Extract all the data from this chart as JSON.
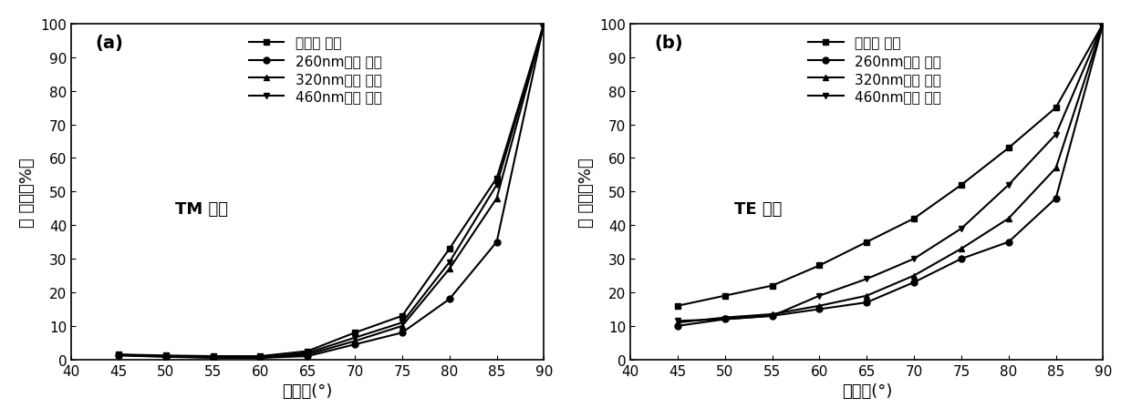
{
  "x": [
    45,
    50,
    55,
    60,
    65,
    70,
    75,
    80,
    85,
    90
  ],
  "panel_a": {
    "label": "(a)",
    "annotation": "TM 极化",
    "ylabel": "反 射率（%）",
    "xlabel": "入射角(°)",
    "series": {
      "uncoated": {
        "label": "未镀膜 玻璌",
        "marker": "s",
        "y": [
          1.5,
          1.2,
          1.0,
          1.0,
          2.5,
          8.0,
          13.0,
          33.0,
          54.0,
          100.0
        ]
      },
      "260nm": {
        "label": "260nm镀膜 玻璌",
        "marker": "o",
        "y": [
          1.2,
          0.8,
          0.5,
          0.5,
          1.0,
          4.5,
          8.0,
          18.0,
          35.0,
          100.0
        ]
      },
      "320nm": {
        "label": "320nm镀膜 玻璌",
        "marker": "^",
        "y": [
          1.3,
          0.9,
          0.6,
          0.5,
          1.5,
          5.5,
          10.0,
          27.0,
          48.0,
          100.0
        ]
      },
      "460nm": {
        "label": "460nm镀膜 玻璌",
        "marker": "v",
        "y": [
          1.4,
          1.0,
          0.8,
          0.6,
          2.0,
          6.5,
          11.0,
          29.0,
          52.0,
          100.0
        ]
      }
    },
    "ylim": [
      0,
      100
    ],
    "xlim": [
      40,
      90
    ],
    "yticks": [
      0,
      10,
      20,
      30,
      40,
      50,
      60,
      70,
      80,
      90,
      100
    ],
    "xticks": [
      40,
      45,
      50,
      55,
      60,
      65,
      70,
      75,
      80,
      85,
      90
    ]
  },
  "panel_b": {
    "label": "(b)",
    "annotation": "TE 极化",
    "ylabel": "反 射率（%）",
    "xlabel": "入射角(°)",
    "series": {
      "uncoated": {
        "label": "未镀膜 玻璌",
        "marker": "s",
        "y": [
          16.0,
          19.0,
          22.0,
          28.0,
          35.0,
          42.0,
          52.0,
          63.0,
          75.0,
          100.0
        ]
      },
      "260nm": {
        "label": "260nm镀膜 玻璌",
        "marker": "o",
        "y": [
          10.0,
          12.0,
          13.0,
          15.0,
          17.0,
          23.0,
          30.0,
          35.0,
          48.0,
          100.0
        ]
      },
      "320nm": {
        "label": "320nm镀膜 玻璌",
        "marker": "^",
        "y": [
          11.0,
          12.5,
          13.5,
          16.0,
          19.0,
          25.0,
          33.0,
          42.0,
          57.0,
          100.0
        ]
      },
      "460nm": {
        "label": "460nm镀膜 玻璌",
        "marker": "v",
        "y": [
          11.5,
          12.0,
          13.0,
          19.0,
          24.0,
          30.0,
          39.0,
          52.0,
          67.0,
          100.0
        ]
      }
    },
    "ylim": [
      0,
      100
    ],
    "xlim": [
      40,
      90
    ],
    "yticks": [
      0,
      10,
      20,
      30,
      40,
      50,
      60,
      70,
      80,
      90,
      100
    ],
    "xticks": [
      40,
      45,
      50,
      55,
      60,
      65,
      70,
      75,
      80,
      85,
      90
    ]
  },
  "line_color": "#000000",
  "bg_color": "#ffffff",
  "fontsize_label": 13,
  "fontsize_tick": 11,
  "fontsize_legend": 11,
  "fontsize_annotation": 13,
  "fontsize_panel_label": 14
}
